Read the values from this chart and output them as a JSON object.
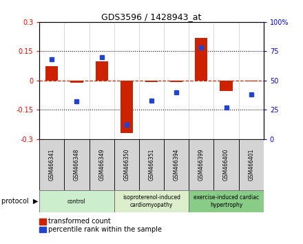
{
  "title": "GDS3596 / 1428943_at",
  "samples": [
    "GSM466341",
    "GSM466348",
    "GSM466349",
    "GSM466350",
    "GSM466351",
    "GSM466394",
    "GSM466399",
    "GSM466400",
    "GSM466401"
  ],
  "transformed_count": [
    0.075,
    -0.01,
    0.1,
    -0.27,
    -0.008,
    -0.008,
    0.22,
    -0.055,
    -0.003
  ],
  "percentile_rank": [
    68,
    32,
    70,
    12,
    33,
    40,
    78,
    27,
    38
  ],
  "groups": [
    {
      "label": "control",
      "start": 0,
      "end": 3,
      "color": "#cceecc"
    },
    {
      "label": "isoproterenol-induced\ncardiomyopathy",
      "start": 3,
      "end": 6,
      "color": "#ddeecc"
    },
    {
      "label": "exercise-induced cardiac\nhypertrophy",
      "start": 6,
      "end": 9,
      "color": "#88cc88"
    }
  ],
  "ylim_left": [
    -0.3,
    0.3
  ],
  "ylim_right": [
    0,
    100
  ],
  "yticks_left": [
    -0.3,
    -0.15,
    0.0,
    0.15,
    0.3
  ],
  "ytick_labels_left": [
    "-0.3",
    "-0.15",
    "0",
    "0.15",
    "0.3"
  ],
  "yticks_right": [
    0,
    25,
    50,
    75,
    100
  ],
  "ytick_labels_right": [
    "0",
    "25",
    "50",
    "75",
    "100%"
  ],
  "bar_color": "#cc2200",
  "dot_color": "#2244cc",
  "background_color": "#ffffff",
  "zero_line_color": "#cc2200",
  "legend_items": [
    {
      "label": "transformed count",
      "color": "#cc2200"
    },
    {
      "label": "percentile rank within the sample",
      "color": "#2244cc"
    }
  ]
}
